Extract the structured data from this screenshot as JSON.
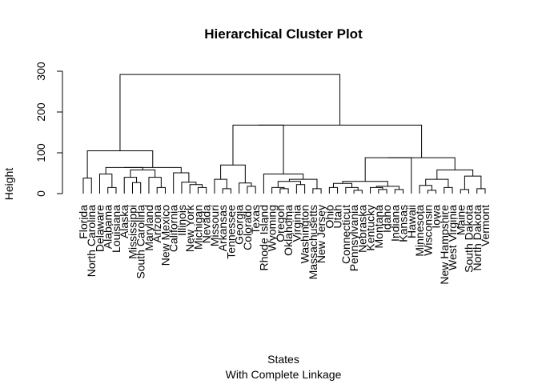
{
  "chart_data": {
    "type": "dendrogram",
    "title": "Hierarchical Cluster Plot",
    "xlabel": "States",
    "subtitle": "With Complete Linkage",
    "ylabel": "Height",
    "ylim": [
      0,
      300
    ],
    "yticks": [
      0,
      100,
      200,
      300
    ],
    "leaves": [
      "Florida",
      "North Carolina",
      "Delaware",
      "Alabama",
      "Louisiana",
      "Alaska",
      "Mississippi",
      "South Carolina",
      "Maryland",
      "Arizona",
      "New Mexico",
      "California",
      "Illinois",
      "New York",
      "Michigan",
      "Nevada",
      "Missouri",
      "Arkansas",
      "Tennessee",
      "Georgia",
      "Colorado",
      "Texas",
      "Rhode Island",
      "Wyoming",
      "Oregon",
      "Oklahoma",
      "Virginia",
      "Washington",
      "Massachusetts",
      "New Jersey",
      "Ohio",
      "Utah",
      "Connecticut",
      "Pennsylvania",
      "Nebraska",
      "Kentucky",
      "Montana",
      "Idaho",
      "Indiana",
      "Kansas",
      "Hawaii",
      "Minnesota",
      "Wisconsin",
      "Iowa",
      "New Hampshire",
      "West Virginia",
      "Maine",
      "South Dakota",
      "North Dakota",
      "Vermont"
    ],
    "merges": [
      [
        [
          0
        ],
        [
          1
        ],
        38
      ],
      [
        [
          3
        ],
        [
          4
        ],
        15
      ],
      [
        [
          2
        ],
        "n1",
        48
      ],
      [
        [
          6
        ],
        [
          7
        ],
        27
      ],
      [
        [
          5
        ],
        "n3",
        40
      ],
      [
        [
          9
        ],
        [
          10
        ],
        15
      ],
      [
        [
          8
        ],
        "n5",
        40
      ],
      [
        "n4",
        "n6",
        58
      ],
      [
        "n2",
        "n7",
        64
      ],
      [
        [
          14
        ],
        [
          15
        ],
        15
      ],
      [
        [
          13
        ],
        "n9",
        22
      ],
      [
        [
          12
        ],
        "n10",
        28
      ],
      [
        [
          11
        ],
        "n11",
        51
      ],
      [
        "n8",
        "n12",
        64
      ],
      [
        "n0",
        "n13",
        105
      ],
      [
        [
          17
        ],
        [
          18
        ],
        12
      ],
      [
        [
          16
        ],
        "n15",
        35
      ],
      [
        [
          20
        ],
        [
          21
        ],
        18
      ],
      [
        [
          19
        ],
        "n17",
        26
      ],
      [
        "n16",
        "n18",
        70
      ],
      [
        [
          24
        ],
        [
          25
        ],
        12
      ],
      [
        [
          23
        ],
        "n20",
        15
      ],
      [
        [
          26
        ],
        [
          27
        ],
        22
      ],
      [
        "n21",
        "n22",
        30
      ],
      [
        [
          28
        ],
        [
          29
        ],
        12
      ],
      [
        "n23",
        "n24",
        35
      ],
      [
        [
          22
        ],
        "n25",
        48
      ],
      [
        "n19",
        "n26",
        168
      ],
      [
        [
          30
        ],
        [
          31
        ],
        15
      ],
      [
        [
          33
        ],
        [
          34
        ],
        8
      ],
      [
        [
          32
        ],
        "n29",
        15
      ],
      [
        "n28",
        "n30",
        25
      ],
      [
        [
          36
        ],
        [
          37
        ],
        10
      ],
      [
        [
          35
        ],
        "n32",
        15
      ],
      [
        [
          38
        ],
        [
          39
        ],
        10
      ],
      [
        "n33",
        "n34",
        18
      ],
      [
        "n31",
        "n35",
        30
      ],
      [
        [
          40
        ],
        "n36",
        88
      ],
      [
        [
          42
        ],
        [
          43
        ],
        8
      ],
      [
        [
          41
        ],
        "n38",
        20
      ],
      [
        [
          44
        ],
        [
          45
        ],
        15
      ],
      [
        "n39",
        "n40",
        35
      ],
      [
        [
          46
        ],
        [
          47
        ],
        10
      ],
      [
        [
          48
        ],
        [
          49
        ],
        12
      ],
      [
        "n42",
        "n43",
        43
      ],
      [
        "n41",
        "n44",
        58
      ],
      [
        "n37",
        "n45",
        88
      ],
      [
        "n27",
        "n46",
        168
      ],
      [
        "n14",
        "n47",
        292
      ]
    ]
  }
}
